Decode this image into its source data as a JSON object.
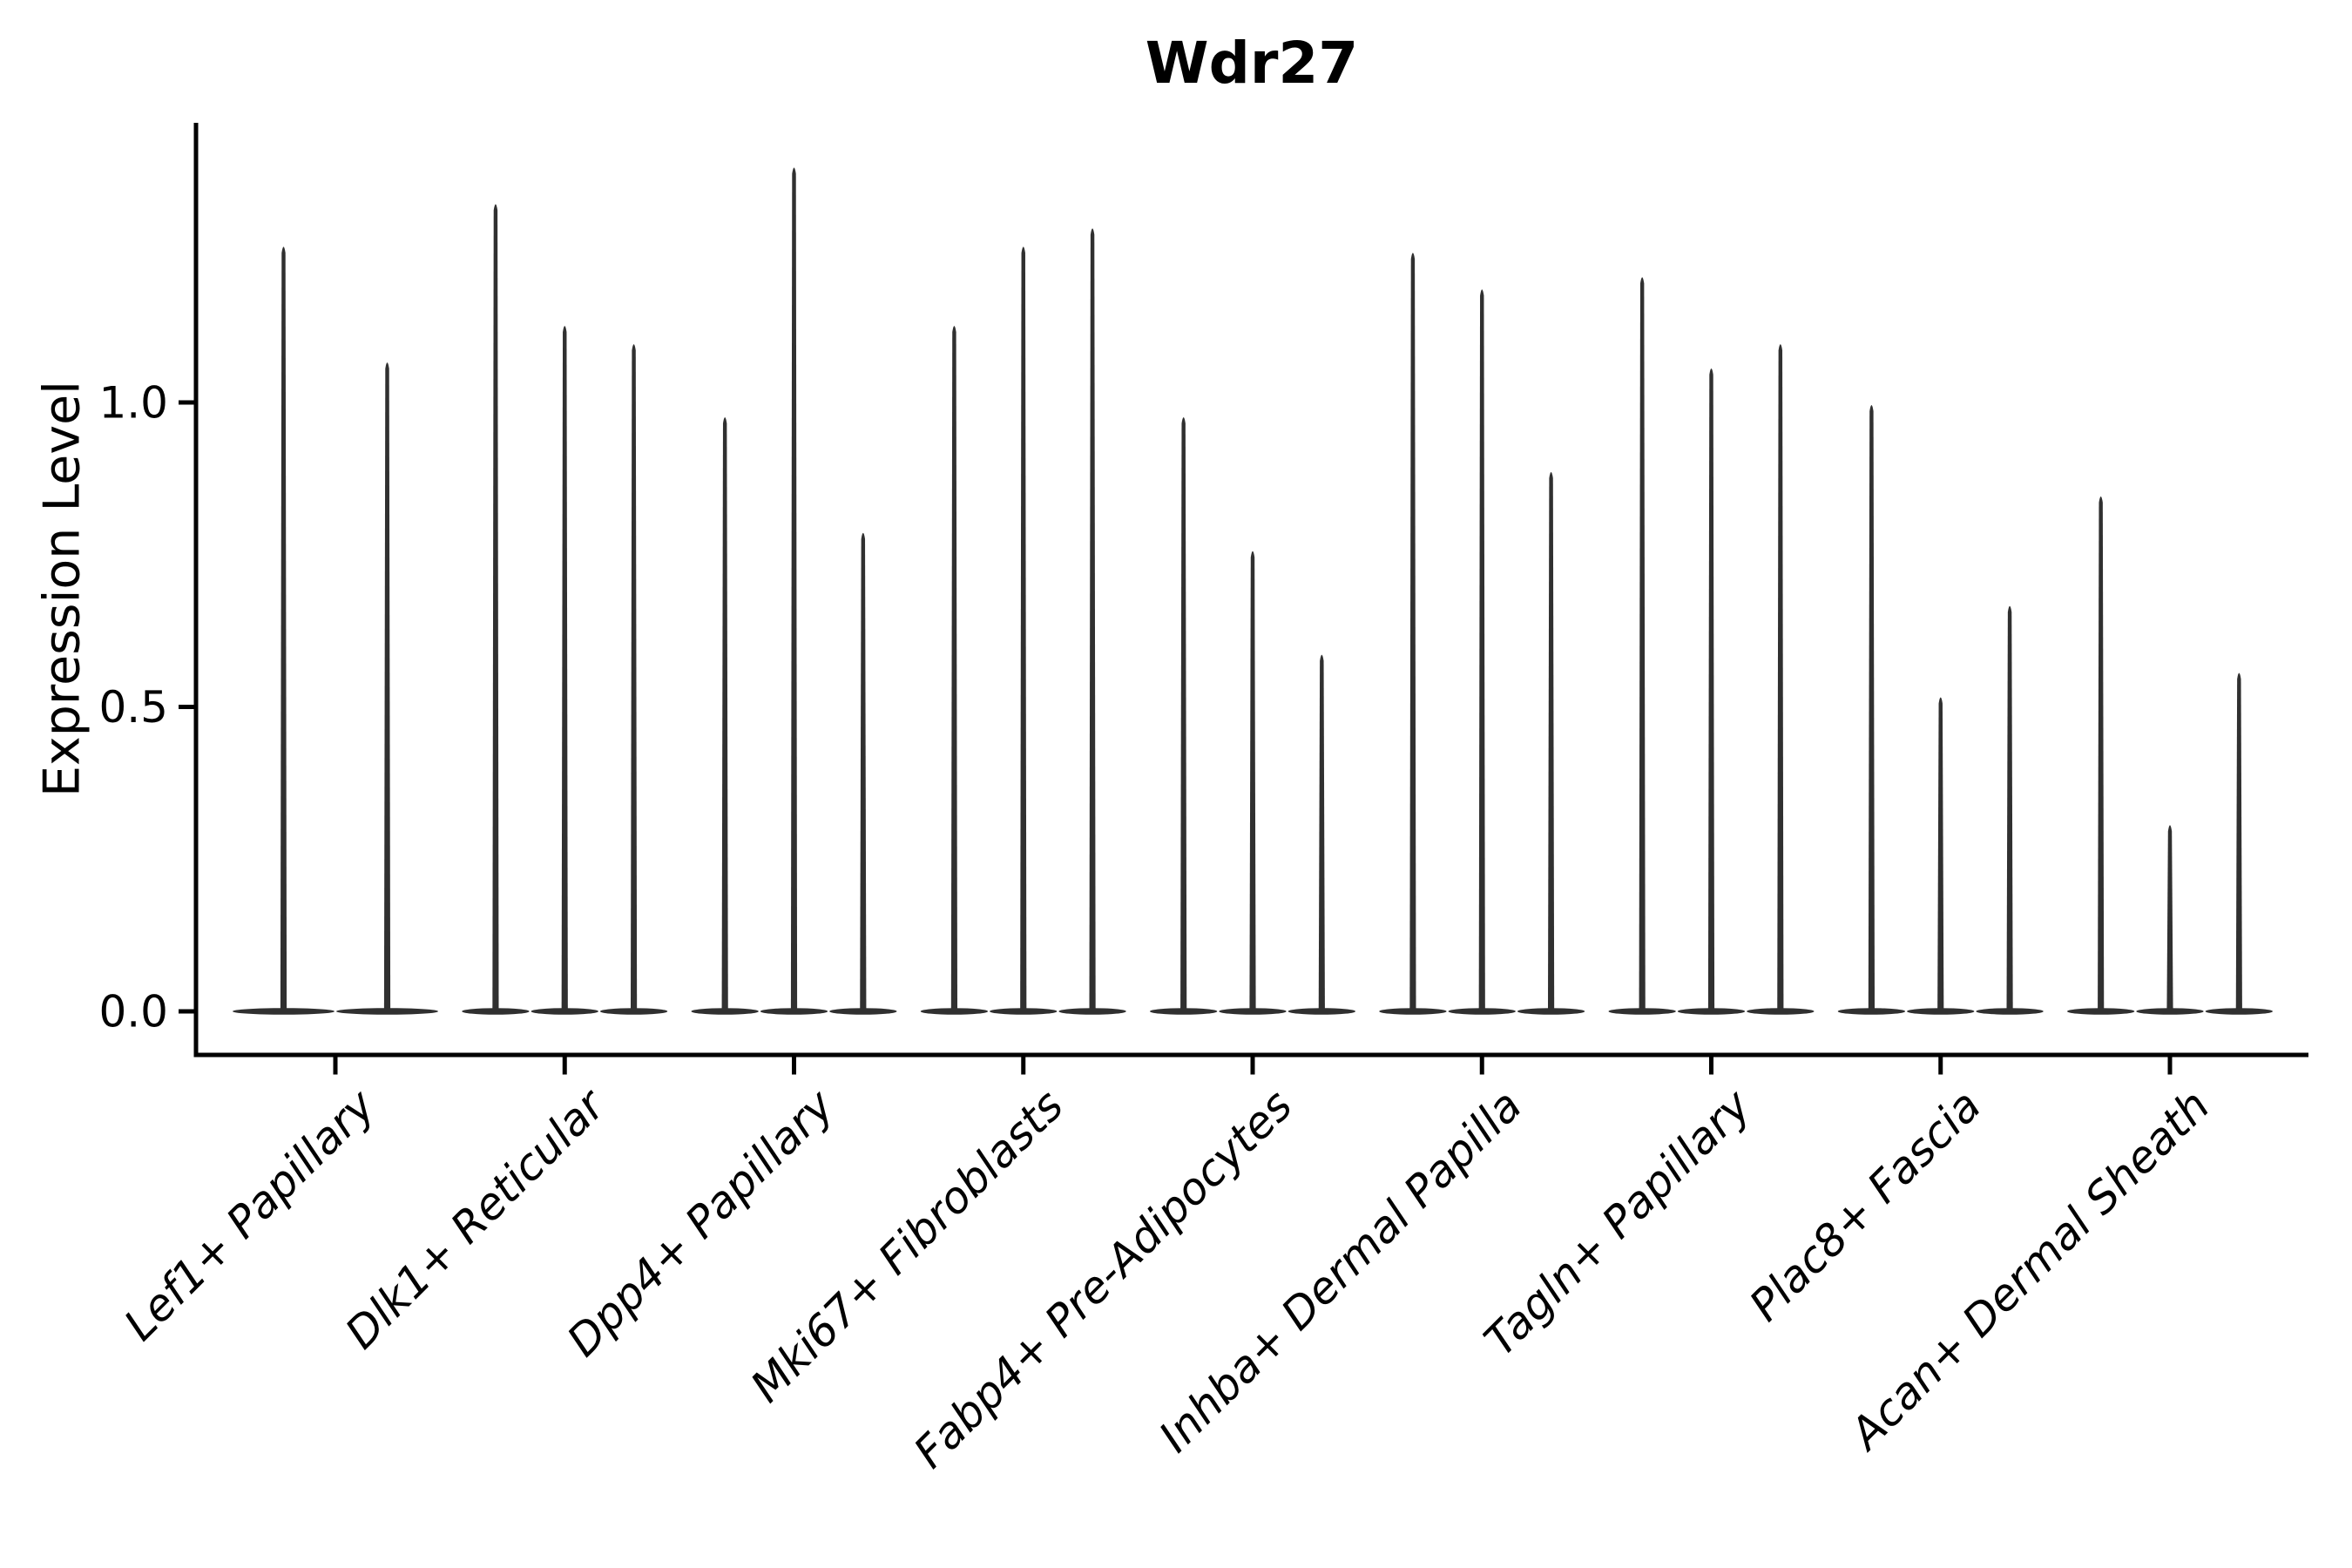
{
  "figure": {
    "background": "#ffffff"
  },
  "chart_data": {
    "type": "violin",
    "title": "Wdr27",
    "ylabel": "Expression Level",
    "xlabel": "",
    "ytick_labels": [
      "0.0",
      "0.5",
      "1.0"
    ],
    "ytick_values": [
      0.0,
      0.5,
      1.0
    ],
    "ylim": [
      -0.07,
      1.46
    ],
    "grid": false,
    "legend": "none",
    "baseline_value": 0.0,
    "axis_color": "#000000",
    "violin_color": "#303030",
    "categories": [
      "Lef1+ Papillary",
      "Dlk1+ Reticular",
      "Dpp4+ Papillary",
      "Mki67+ Fibroblasts",
      "Fabp4+ Pre-Adipocytes",
      "Inhba+ Dermal Papilla",
      "Tagln+ Papillary",
      "Plac8+ Fascia",
      "Acan+ Dermal Sheath"
    ],
    "groups": [
      {
        "category": "Lef1+ Papillary",
        "violin_maxima": [
          1.26,
          1.07
        ]
      },
      {
        "category": "Dlk1+ Reticular",
        "violin_maxima": [
          1.33,
          1.13,
          1.1
        ]
      },
      {
        "category": "Dpp4+ Papillary",
        "violin_maxima": [
          0.98,
          1.39,
          0.79
        ]
      },
      {
        "category": "Mki67+ Fibroblasts",
        "violin_maxima": [
          1.13,
          1.26,
          1.29
        ]
      },
      {
        "category": "Fabp4+ Pre-Adipocytes",
        "violin_maxima": [
          0.98,
          0.76,
          0.59
        ]
      },
      {
        "category": "Inhba+ Dermal Papilla",
        "violin_maxima": [
          1.25,
          1.19,
          0.89
        ]
      },
      {
        "category": "Tagln+ Papillary",
        "violin_maxima": [
          1.21,
          1.06,
          1.1
        ]
      },
      {
        "category": "Plac8+ Fascia",
        "violin_maxima": [
          1.0,
          0.52,
          0.67
        ]
      },
      {
        "category": "Acan+ Dermal Sheath",
        "violin_maxima": [
          0.85,
          0.31,
          0.56
        ]
      }
    ]
  }
}
